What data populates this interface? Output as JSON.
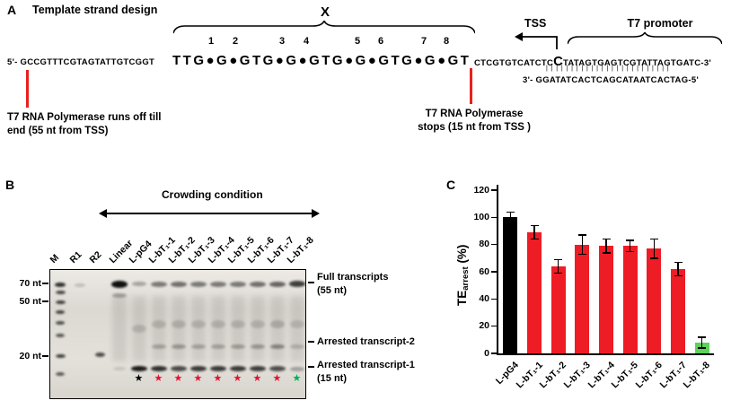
{
  "panelA": {
    "panel_label": "A",
    "title": "Template strand design",
    "x_label": "X",
    "g_numbers": [
      "1",
      "2",
      "3",
      "4",
      "5",
      "6",
      "7",
      "8"
    ],
    "sequence": {
      "left_small": "5'- GCCGTTTCGTAGTATTGTCGGT",
      "g4_bold": "TTG●G●GTG●G●GTG●G●GTG●G●GT",
      "mid_small": "CTCGTGTCATCTC",
      "big_c": "C",
      "promoter_top": "TATAGTGAGTCGTATTAGTGATC-3'",
      "bond_lines": "|||||||||||||||||||||||||",
      "bottom_strand": "3'- GGATATCACTCAGCATAATCACTAG-5'"
    },
    "tss_label": "TSS",
    "promoter_label": "T7 promoter",
    "left_note": [
      "T7 RNA Polymerase runs off till",
      "end (55 nt from TSS)"
    ],
    "right_note": [
      "T7  RNA  Polymerase",
      "stops (15 nt from TSS )"
    ]
  },
  "panelB": {
    "panel_label": "B",
    "condition_label": "Crowding condition",
    "size_markers": [
      "70 nt",
      "50 nt",
      "20 nt"
    ],
    "annotations": [
      [
        "Full transcripts",
        "(55 nt)"
      ],
      [
        "Arrested transcript-2"
      ],
      [
        "Arrested transcript-1",
        "(15 nt)"
      ]
    ],
    "lanes": [
      {
        "label": "M",
        "star": null,
        "bands": [
          {
            "p": 0.115,
            "o": 0.85,
            "h": 5,
            "w": 0.55
          },
          {
            "p": 0.17,
            "o": 0.75,
            "h": 4,
            "w": 0.5
          },
          {
            "p": 0.25,
            "o": 0.78,
            "h": 4,
            "w": 0.5
          },
          {
            "p": 0.325,
            "o": 0.75,
            "h": 4,
            "w": 0.48
          },
          {
            "p": 0.41,
            "o": 0.7,
            "h": 4,
            "w": 0.48
          },
          {
            "p": 0.5,
            "o": 0.65,
            "h": 4,
            "w": 0.45
          },
          {
            "p": 0.665,
            "o": 0.78,
            "h": 4,
            "w": 0.5
          },
          {
            "p": 0.8,
            "o": 0.65,
            "h": 4,
            "w": 0.45
          }
        ]
      },
      {
        "label": "R1",
        "star": null,
        "bands": [
          {
            "p": 0.12,
            "o": 0.18,
            "h": 4,
            "w": 0.55
          }
        ]
      },
      {
        "label": "R2",
        "star": null,
        "bands": [
          {
            "p": 0.655,
            "o": 0.7,
            "h": 5,
            "w": 0.5
          }
        ]
      },
      {
        "label": "Linear",
        "star": null,
        "smear": true,
        "bands": [
          {
            "p": 0.11,
            "o": 1,
            "h": 8,
            "w": 0.85
          },
          {
            "p": 0.195,
            "o": 0.3,
            "h": 5,
            "w": 0.7
          },
          {
            "p": 0.76,
            "o": 0.12,
            "h": 4,
            "w": 0.6
          }
        ]
      },
      {
        "label": "L-pG4",
        "star": "#000000",
        "smear": true,
        "bands": [
          {
            "p": 0.11,
            "o": 0.3,
            "h": 5,
            "w": 0.75
          },
          {
            "p": 0.45,
            "o": 0.14,
            "h": 9,
            "w": 0.7
          },
          {
            "p": 0.76,
            "o": 0.95,
            "h": 6,
            "w": 0.8
          }
        ]
      },
      {
        "label": "L-bT₁-1",
        "star": "#e8112d",
        "smear": true,
        "bands": [
          {
            "p": 0.11,
            "o": 0.5,
            "h": 6,
            "w": 0.8
          },
          {
            "p": 0.42,
            "o": 0.15,
            "h": 9,
            "w": 0.7
          },
          {
            "p": 0.59,
            "o": 0.25,
            "h": 5,
            "w": 0.7
          },
          {
            "p": 0.76,
            "o": 0.85,
            "h": 6,
            "w": 0.8
          }
        ]
      },
      {
        "label": "L-bT₁-2",
        "star": "#e8112d",
        "smear": true,
        "bands": [
          {
            "p": 0.11,
            "o": 0.55,
            "h": 6,
            "w": 0.8
          },
          {
            "p": 0.42,
            "o": 0.16,
            "h": 9,
            "w": 0.7
          },
          {
            "p": 0.59,
            "o": 0.3,
            "h": 5,
            "w": 0.7
          },
          {
            "p": 0.76,
            "o": 0.72,
            "h": 6,
            "w": 0.8
          }
        ]
      },
      {
        "label": "L-bT₁-3",
        "star": "#e8112d",
        "smear": true,
        "bands": [
          {
            "p": 0.11,
            "o": 0.5,
            "h": 6,
            "w": 0.8
          },
          {
            "p": 0.42,
            "o": 0.15,
            "h": 9,
            "w": 0.7
          },
          {
            "p": 0.59,
            "o": 0.25,
            "h": 5,
            "w": 0.7
          },
          {
            "p": 0.76,
            "o": 0.8,
            "h": 6,
            "w": 0.8
          }
        ]
      },
      {
        "label": "L-bT₁-4",
        "star": "#e8112d",
        "smear": true,
        "bands": [
          {
            "p": 0.11,
            "o": 0.5,
            "h": 6,
            "w": 0.8
          },
          {
            "p": 0.42,
            "o": 0.15,
            "h": 9,
            "w": 0.7
          },
          {
            "p": 0.59,
            "o": 0.25,
            "h": 5,
            "w": 0.7
          },
          {
            "p": 0.76,
            "o": 0.8,
            "h": 6,
            "w": 0.8
          }
        ]
      },
      {
        "label": "L-bT₁-5",
        "star": "#e8112d",
        "smear": true,
        "bands": [
          {
            "p": 0.11,
            "o": 0.5,
            "h": 6,
            "w": 0.8
          },
          {
            "p": 0.42,
            "o": 0.15,
            "h": 9,
            "w": 0.7
          },
          {
            "p": 0.59,
            "o": 0.28,
            "h": 5,
            "w": 0.7
          },
          {
            "p": 0.76,
            "o": 0.8,
            "h": 6,
            "w": 0.8
          }
        ]
      },
      {
        "label": "L-bT₁-6",
        "star": "#e8112d",
        "smear": true,
        "bands": [
          {
            "p": 0.11,
            "o": 0.55,
            "h": 6,
            "w": 0.8
          },
          {
            "p": 0.42,
            "o": 0.15,
            "h": 9,
            "w": 0.7
          },
          {
            "p": 0.59,
            "o": 0.3,
            "h": 5,
            "w": 0.7
          },
          {
            "p": 0.76,
            "o": 0.78,
            "h": 6,
            "w": 0.8
          }
        ]
      },
      {
        "label": "L-bT₁-7",
        "star": "#e8112d",
        "smear": true,
        "bands": [
          {
            "p": 0.11,
            "o": 0.6,
            "h": 6,
            "w": 0.8
          },
          {
            "p": 0.42,
            "o": 0.18,
            "h": 9,
            "w": 0.7
          },
          {
            "p": 0.59,
            "o": 0.4,
            "h": 5,
            "w": 0.7
          },
          {
            "p": 0.76,
            "o": 0.7,
            "h": 6,
            "w": 0.8
          }
        ]
      },
      {
        "label": "L-bT₁-8",
        "star": "#00b050",
        "smear": true,
        "bands": [
          {
            "p": 0.11,
            "o": 0.78,
            "h": 7,
            "w": 0.85
          },
          {
            "p": 0.42,
            "o": 0.13,
            "h": 9,
            "w": 0.7
          },
          {
            "p": 0.59,
            "o": 0.18,
            "h": 5,
            "w": 0.7
          },
          {
            "p": 0.76,
            "o": 0.3,
            "h": 5,
            "w": 0.75
          }
        ]
      }
    ]
  },
  "panelC": {
    "panel_label": "C"
  },
  "chart_data": {
    "type": "bar",
    "title": "",
    "ylabel": "TE_arrest (%)",
    "ylabel_parts": {
      "main": "TE",
      "sub": "arrest",
      "unit": " (%)"
    },
    "ylim": [
      0,
      120
    ],
    "yticks": [
      0,
      20,
      40,
      60,
      80,
      100,
      120
    ],
    "categories": [
      "L-pG4",
      "L-bT₁-1",
      "L-bT₁-2",
      "L-bT₁-3",
      "L-bT₁-4",
      "L-bT₁-5",
      "L-bT₁-6",
      "L-bT₁-7",
      "L-bT₁-8"
    ],
    "values": [
      100,
      89,
      64,
      80,
      79,
      79,
      77,
      62,
      8
    ],
    "errors": [
      4,
      5,
      5,
      7,
      5,
      4,
      7,
      5,
      4
    ],
    "colors": [
      "#000000",
      "#ee1c25",
      "#ee1c25",
      "#ee1c25",
      "#ee1c25",
      "#ee1c25",
      "#ee1c25",
      "#ee1c25",
      "#5ed15a"
    ],
    "legend": null,
    "grid": false
  }
}
